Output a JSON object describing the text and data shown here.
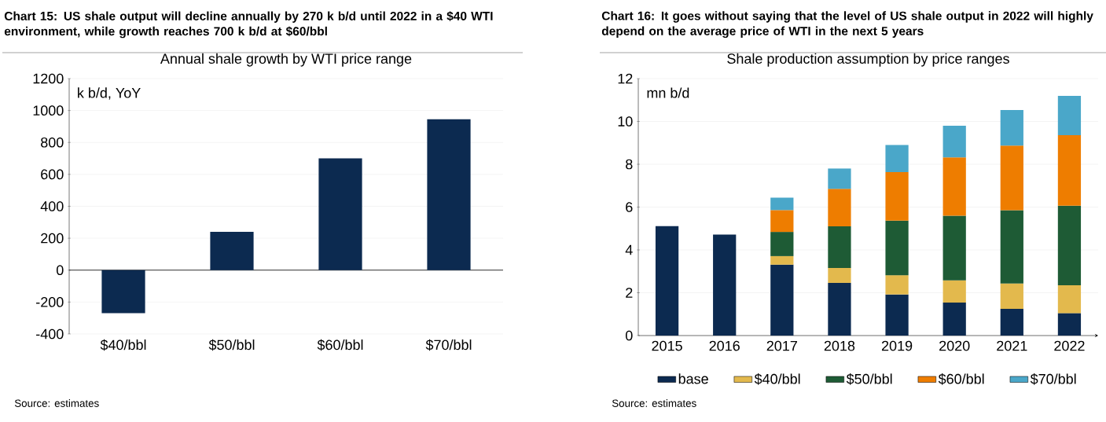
{
  "chart_data": [
    {
      "type": "bar",
      "title": "Chart 15: US shale output will decline annually by 270 k b/d until 2022 in a $40 WTI environment, while growth reaches 700 k b/d at $60/bbl",
      "subtitle": "Annual shale growth by WTI price range",
      "ylabel": "k b/d, YoY",
      "categories": [
        "$40/bbl",
        "$50/bbl",
        "$60/bbl",
        "$70/bbl"
      ],
      "values": [
        -270,
        240,
        700,
        945
      ],
      "color": "#0c2a50",
      "ylim": [
        -400,
        1200
      ],
      "yticks": [
        -400,
        -200,
        0,
        200,
        400,
        600,
        800,
        1000,
        1200
      ],
      "grid": "y",
      "annotations": [
        "Source: estimates"
      ]
    },
    {
      "type": "bar",
      "stacked": true,
      "title": "Chart 16: It goes without saying that the level of US shale output in 2022 will highly depend on the average price of WTI in the next 5 years",
      "subtitle": "Shale production assumption by price ranges",
      "ylabel": "mn b/d",
      "categories": [
        "2015",
        "2016",
        "2017",
        "2018",
        "2019",
        "2020",
        "2021",
        "2022"
      ],
      "series": [
        {
          "name": "base",
          "color": "#0c2a50",
          "values": [
            5.11,
            4.72,
            3.31,
            2.46,
            1.92,
            1.54,
            1.25,
            1.05
          ]
        },
        {
          "name": "$40/bbl",
          "color": "#e3b94d",
          "values": [
            null,
            null,
            0.4,
            0.7,
            0.9,
            1.04,
            1.18,
            1.3
          ]
        },
        {
          "name": "$50/bbl",
          "color": "#1e5b35",
          "values": [
            null,
            null,
            1.13,
            1.94,
            2.55,
            3.02,
            3.42,
            3.71
          ]
        },
        {
          "name": "$60/bbl",
          "color": "#ee7d00",
          "values": [
            null,
            null,
            1.02,
            1.75,
            2.26,
            2.72,
            3.02,
            3.3
          ]
        },
        {
          "name": "$70/bbl",
          "color": "#4aa7c9",
          "values": [
            null,
            null,
            0.58,
            0.95,
            1.27,
            1.48,
            1.66,
            1.83
          ]
        }
      ],
      "ylim": [
        0,
        12
      ],
      "yticks": [
        0,
        2,
        4,
        6,
        8,
        10,
        12
      ],
      "grid": "y",
      "legend": "bottom",
      "annotations": [
        "Source: estimates"
      ]
    }
  ]
}
